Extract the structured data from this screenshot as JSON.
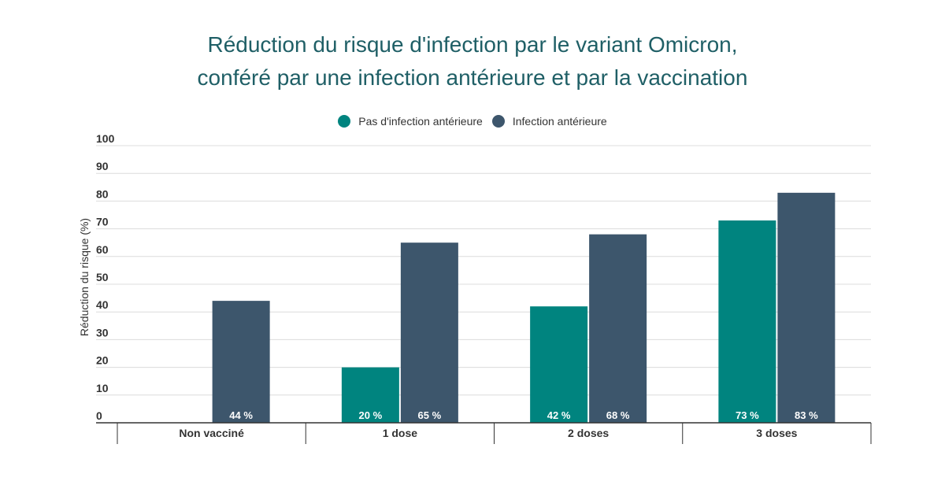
{
  "chart_data": {
    "type": "bar",
    "title_lines": [
      "Réduction du risque d'infection par le variant Omicron,",
      "conféré par une infection antérieure et par la vaccination"
    ],
    "ylabel": "Réduction du risque (%)",
    "xlabel": "",
    "ylim": [
      0,
      100
    ],
    "yticks": [
      0,
      10,
      20,
      30,
      40,
      50,
      60,
      70,
      80,
      90,
      100
    ],
    "categories": [
      "Non vacciné",
      "1 dose",
      "2 doses",
      "3 doses"
    ],
    "series": [
      {
        "name": "Pas d'infection antérieure",
        "color": "#00847f",
        "values": [
          null,
          20,
          42,
          73
        ],
        "labels": [
          "",
          "20 %",
          "42 %",
          "73 %"
        ]
      },
      {
        "name": "Infection antérieure",
        "color": "#3d566c",
        "values": [
          44,
          65,
          68,
          83
        ],
        "labels": [
          "44 %",
          "65 %",
          "68 %",
          "83 %"
        ]
      }
    ],
    "legend_position": "top-center",
    "grid": true
  }
}
